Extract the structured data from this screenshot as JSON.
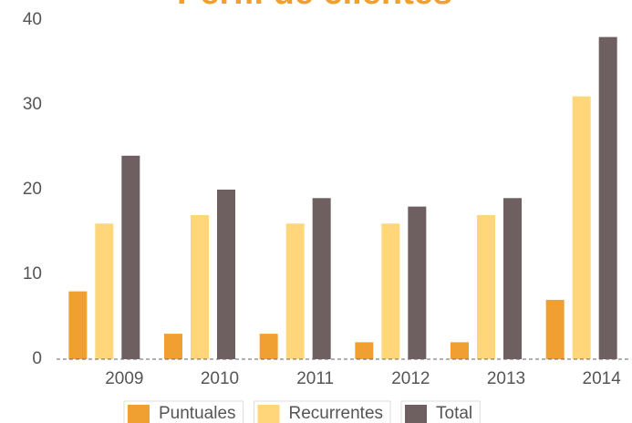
{
  "chart_data": {
    "type": "bar",
    "title": "Perfil de clientes",
    "categories": [
      "2009",
      "2010",
      "2011",
      "2012",
      "2013",
      "2014"
    ],
    "series": [
      {
        "name": "Puntuales",
        "color": "#f0a030",
        "values": [
          8,
          3,
          3,
          2,
          2,
          7
        ]
      },
      {
        "name": "Recurrentes",
        "color": "#ffd77a",
        "values": [
          16,
          17,
          16,
          16,
          17,
          31
        ]
      },
      {
        "name": "Total",
        "color": "#6e5f60",
        "values": [
          24,
          20,
          19,
          18,
          19,
          38
        ]
      }
    ],
    "ylim": [
      0,
      40
    ],
    "yticks": [
      0,
      10,
      20,
      30,
      40
    ],
    "grid": false,
    "legend": "bottom"
  }
}
